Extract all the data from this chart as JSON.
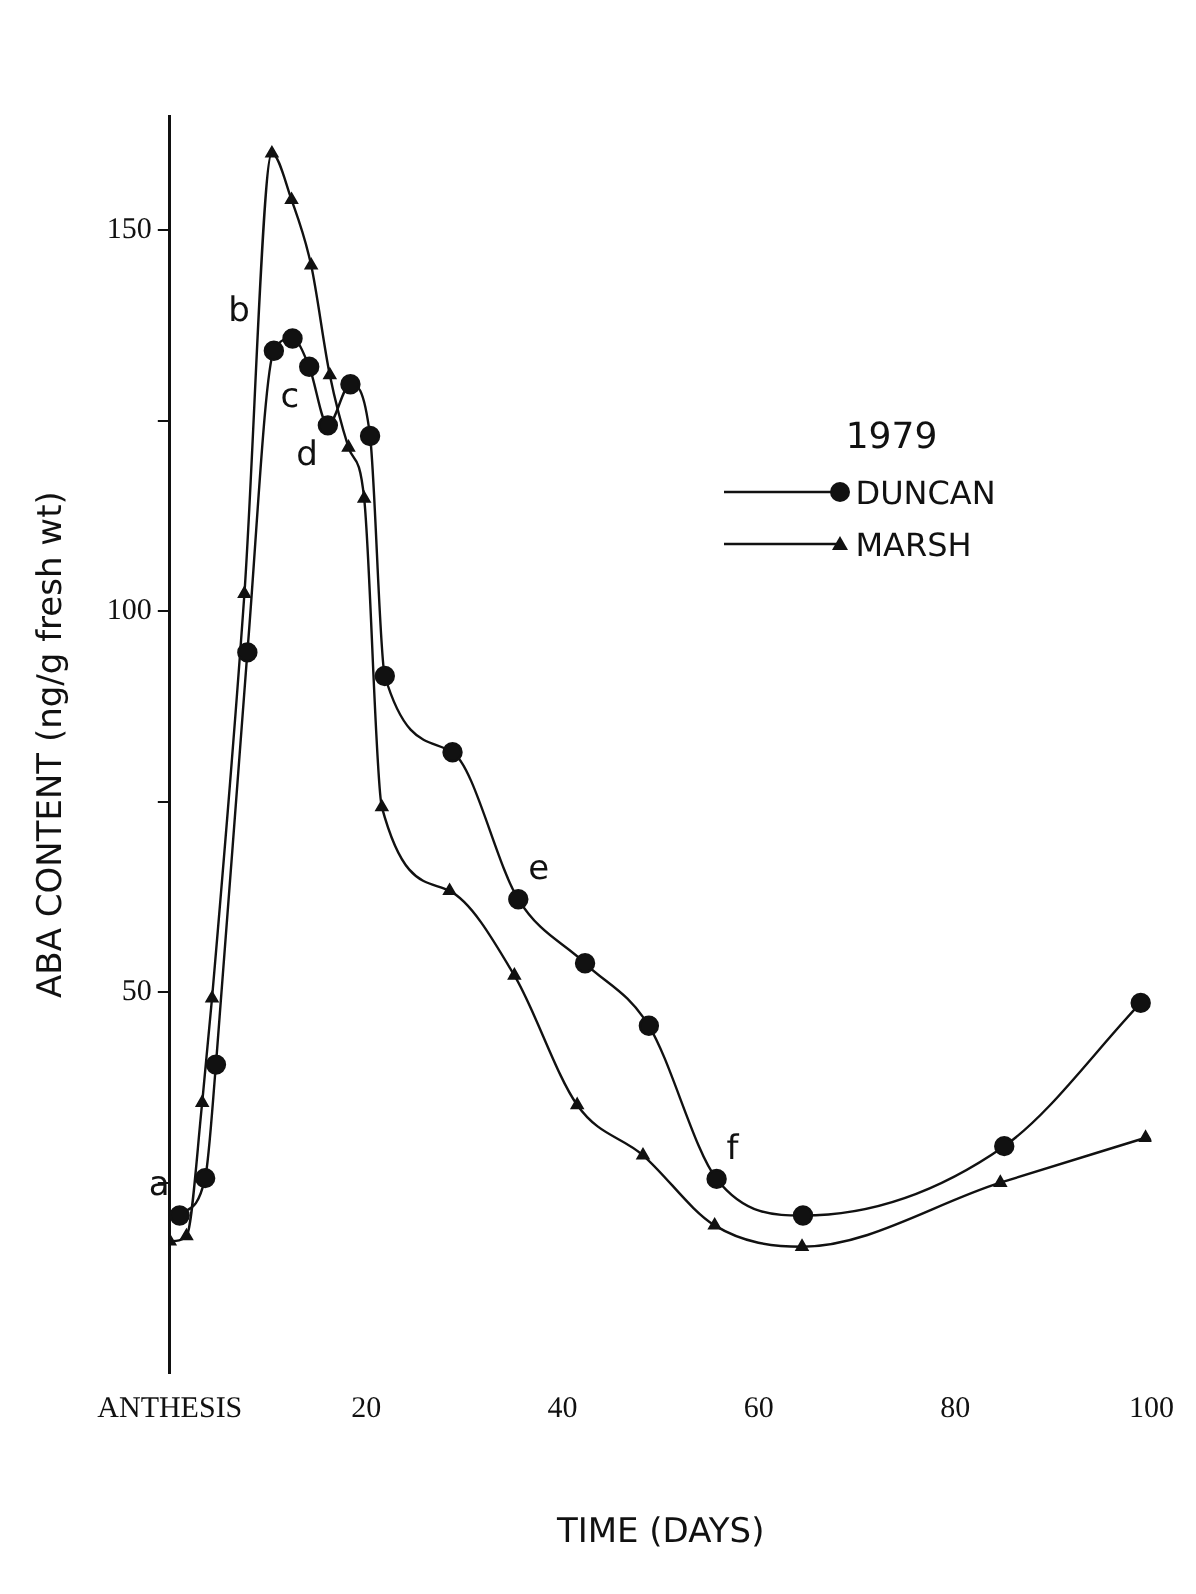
{
  "chart_data": {
    "type": "line",
    "xlabel": "TIME (DAYS)",
    "ylabel": "ABA CONTENT (ng/g fresh wt)",
    "legend_title": "1979",
    "xlim": [
      0,
      100
    ],
    "ylim": [
      0,
      165
    ],
    "xticks": [
      {
        "value": 0,
        "label": "ANTHESIS"
      },
      20,
      40,
      60,
      80,
      100
    ],
    "yticks": [
      {
        "value": 25,
        "label": null
      },
      50,
      {
        "value": 75,
        "label": null
      },
      100,
      {
        "value": 125,
        "label": null
      },
      150
    ],
    "grid": false,
    "legend": "top right",
    "line_style": "solid",
    "series": [
      {
        "name": "DUNCAN",
        "color": "#111111",
        "marker": "circle",
        "x": [
          1,
          3.6,
          4.7,
          7.9,
          10.6,
          12.5,
          14.2,
          16.1,
          18.4,
          20.4,
          21.9,
          28.8,
          35.5,
          42.3,
          48.8,
          55.7,
          64.5,
          85,
          98.9
        ],
        "values": [
          20.7,
          25.6,
          40.5,
          94.6,
          134.2,
          135.8,
          132.1,
          124.4,
          129.8,
          123,
          91.5,
          81.5,
          62.2,
          53.8,
          45.6,
          25.5,
          20.7,
          29.8,
          48.6
        ]
      },
      {
        "name": "MARSH",
        "color": "#111111",
        "marker": "triangle",
        "x": [
          0,
          1.7,
          3.3,
          4.3,
          7.6,
          10.4,
          12.4,
          14.4,
          16.3,
          18.2,
          19.8,
          21.6,
          28.5,
          35.1,
          41.5,
          48.2,
          55.5,
          64.4,
          84.6,
          99.4
        ],
        "values": [
          17.3,
          18,
          35.5,
          49.2,
          102.3,
          160.1,
          154,
          145.4,
          131,
          121.5,
          114.8,
          74.3,
          63.3,
          52.2,
          35.2,
          28.6,
          19.4,
          16.6,
          25,
          30.9
        ]
      }
    ],
    "annotations": [
      {
        "text": "a",
        "x": 1,
        "y": 20.7
      },
      {
        "text": "b",
        "x": 10.6,
        "y": 134.2
      },
      {
        "text": "c",
        "x": 14.2,
        "y": 132.1
      },
      {
        "text": "d",
        "x": 16.1,
        "y": 124.4
      },
      {
        "text": "e",
        "x": 35.5,
        "y": 62.2
      },
      {
        "text": "f",
        "x": 55.7,
        "y": 25.5
      }
    ]
  }
}
